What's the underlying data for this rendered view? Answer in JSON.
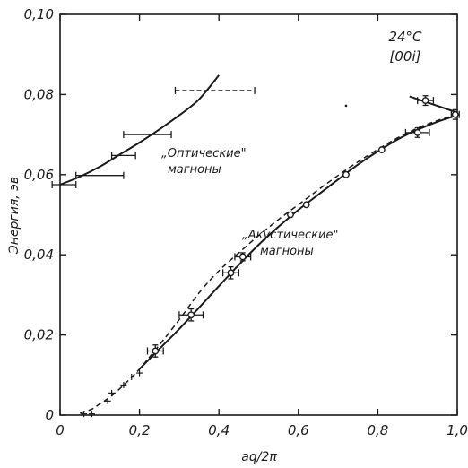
{
  "chart_data": {
    "type": "scatter",
    "xlabel": "aq/2π",
    "ylabel": "Энергия, эв",
    "xlim": [
      0,
      1.0
    ],
    "ylim": [
      0,
      0.1
    ],
    "x_ticks": [
      "0",
      "0,2",
      "0,4",
      "0,6",
      "0,8",
      "1,0"
    ],
    "y_ticks": [
      "0",
      "0,02",
      "0,04",
      "0,06",
      "0,08",
      "0,10"
    ],
    "conditions": [
      "24°C",
      "[00i]"
    ],
    "annotations": [
      {
        "id": "optical",
        "lines": [
          "„Оптические\"",
          "магноны"
        ]
      },
      {
        "id": "acoustic",
        "lines": [
          "„Акустические\"",
          "магноны"
        ]
      }
    ],
    "series": [
      {
        "id": "optical-curve",
        "style": "solid",
        "x": [
          0,
          0.05,
          0.1,
          0.15,
          0.2,
          0.25,
          0.3,
          0.35,
          0.4
        ],
        "y": [
          0.0575,
          0.0595,
          0.062,
          0.065,
          0.068,
          0.0713,
          0.0748,
          0.0788,
          0.0848
        ]
      },
      {
        "id": "optical-upper-curve",
        "style": "solid",
        "x": [
          0.88,
          0.94,
          1.0
        ],
        "y": [
          0.0795,
          0.0775,
          0.0755
        ]
      },
      {
        "id": "acoustic-solid-curve",
        "style": "solid",
        "x": [
          0.2,
          0.25,
          0.3,
          0.35,
          0.4,
          0.45,
          0.5,
          0.55,
          0.6,
          0.65,
          0.7,
          0.75,
          0.8,
          0.85,
          0.9,
          0.95,
          1.0
        ],
        "y": [
          0.0115,
          0.0165,
          0.0215,
          0.0268,
          0.0322,
          0.0375,
          0.0425,
          0.047,
          0.0512,
          0.055,
          0.0588,
          0.0625,
          0.0658,
          0.0688,
          0.0712,
          0.0732,
          0.0748
        ]
      },
      {
        "id": "acoustic-dashed-curve",
        "style": "dashed",
        "x": [
          0.05,
          0.08,
          0.1,
          0.13,
          0.16,
          0.2,
          0.25,
          0.3,
          0.35,
          0.4,
          0.45,
          0.5,
          0.55,
          0.6,
          0.65,
          0.7,
          0.75,
          0.8,
          0.85,
          0.9,
          0.95,
          1.0
        ],
        "y": [
          0.0005,
          0.0015,
          0.0028,
          0.0048,
          0.0075,
          0.0115,
          0.0175,
          0.0238,
          0.0305,
          0.036,
          0.0405,
          0.0448,
          0.0488,
          0.0525,
          0.0562,
          0.0598,
          0.0632,
          0.0663,
          0.0692,
          0.0716,
          0.0735,
          0.075
        ]
      },
      {
        "id": "optical-points",
        "marker": "none",
        "points": [
          {
            "x": 0.01,
            "y": 0.0575,
            "xerr": 0.03,
            "yerr": 0
          },
          {
            "x": 0.1,
            "y": 0.0598,
            "xerr": 0.06,
            "yerr": 0
          },
          {
            "x": 0.16,
            "y": 0.0648,
            "xerr": 0.03,
            "yerr": 0
          },
          {
            "x": 0.22,
            "y": 0.07,
            "xerr": 0.06,
            "yerr": 0
          },
          {
            "x": 0.39,
            "y": 0.081,
            "xerr": 0.1,
            "yerr": 0,
            "dashed_xerr": true
          }
        ]
      },
      {
        "id": "acoustic-points",
        "marker": "circle",
        "points": [
          {
            "x": 0.24,
            "y": 0.016,
            "xerr": 0.02,
            "yerr": 0.0015
          },
          {
            "x": 0.33,
            "y": 0.025,
            "xerr": 0.03,
            "yerr": 0.0015
          },
          {
            "x": 0.43,
            "y": 0.0355,
            "xerr": 0.02,
            "yerr": 0.0015
          },
          {
            "x": 0.46,
            "y": 0.0395,
            "xerr": 0.02,
            "yerr": 0.001
          },
          {
            "x": 0.58,
            "y": 0.05,
            "xerr": 0,
            "yerr": 0
          },
          {
            "x": 0.62,
            "y": 0.0525,
            "xerr": 0,
            "yerr": 0
          },
          {
            "x": 0.72,
            "y": 0.06,
            "xerr": 0,
            "yerr": 0
          },
          {
            "x": 0.81,
            "y": 0.0662,
            "xerr": 0,
            "yerr": 0
          },
          {
            "x": 0.9,
            "y": 0.0705,
            "xerr": 0.03,
            "yerr": 0.0012
          },
          {
            "x": 0.92,
            "y": 0.0785,
            "xerr": 0.02,
            "yerr": 0.0012
          },
          {
            "x": 0.995,
            "y": 0.075,
            "xerr": 0.01,
            "yerr": 0.0012
          }
        ]
      },
      {
        "id": "low-q-points",
        "marker": "cross",
        "points": [
          {
            "x": 0.06,
            "y": 0.0003
          },
          {
            "x": 0.08,
            "y": 0.0003
          },
          {
            "x": 0.12,
            "y": 0.0035
          },
          {
            "x": 0.13,
            "y": 0.0055
          },
          {
            "x": 0.16,
            "y": 0.0075
          },
          {
            "x": 0.18,
            "y": 0.0095
          },
          {
            "x": 0.2,
            "y": 0.0105
          }
        ]
      }
    ]
  }
}
